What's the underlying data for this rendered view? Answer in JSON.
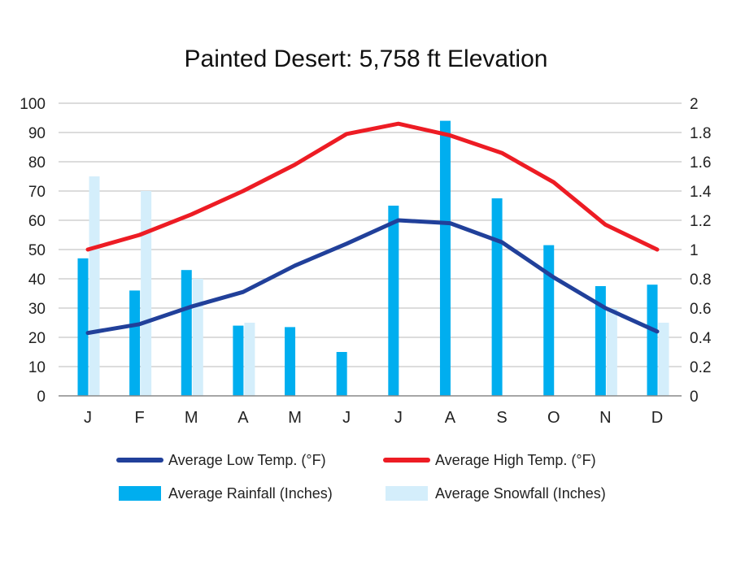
{
  "chart_data": {
    "type": "bar+line",
    "title": "Painted Desert: 5,758 ft Elevation",
    "categories": [
      "J",
      "F",
      "M",
      "A",
      "M",
      "J",
      "J",
      "A",
      "S",
      "O",
      "N",
      "D"
    ],
    "y_left": {
      "range": [
        0,
        100
      ],
      "ticks": [
        "0",
        "10",
        "20",
        "30",
        "40",
        "50",
        "60",
        "70",
        "80",
        "90",
        "100"
      ]
    },
    "y_right": {
      "range": [
        0,
        2
      ],
      "ticks": [
        "0",
        "0.2",
        "0.4",
        "0.6",
        "0.8",
        "1",
        "1.2",
        "1.4",
        "1.6",
        "1.8",
        "2"
      ]
    },
    "grid": true,
    "legend_position": "bottom",
    "bar_series": [
      {
        "name": "Average Rainfall (Inches)",
        "axis": "right",
        "color": "#00AEEF",
        "values": [
          0.94,
          0.72,
          0.86,
          0.48,
          0.47,
          0.3,
          1.3,
          1.88,
          1.35,
          1.03,
          0.75,
          0.76
        ]
      },
      {
        "name": "Average Snowfall (Inches)",
        "axis": "right",
        "color": "#D4EEFB",
        "values": [
          1.5,
          1.4,
          0.8,
          0.5,
          0,
          0,
          0,
          0,
          0,
          0,
          0.6,
          0.5
        ]
      }
    ],
    "line_series": [
      {
        "name": "Average Low Temp. (°F)",
        "axis": "left",
        "color": "#21409A",
        "values": [
          21.5,
          24.5,
          30.5,
          35.5,
          44.5,
          52,
          60,
          59,
          52.5,
          40.5,
          30,
          22
        ]
      },
      {
        "name": "Average High Temp. (°F)",
        "axis": "left",
        "color": "#ED1C24",
        "values": [
          50,
          55,
          62,
          70,
          79,
          89.5,
          93,
          89,
          83,
          73,
          58.5,
          50
        ]
      }
    ],
    "legend": [
      {
        "label": "Average Low Temp. (°F)",
        "kind": "line",
        "color": "#21409A"
      },
      {
        "label": "Average High Temp. (°F)",
        "kind": "line",
        "color": "#ED1C24"
      },
      {
        "label": "Average Rainfall (Inches)",
        "kind": "bar",
        "color": "#00AEEF"
      },
      {
        "label": "Average Snowfall (Inches)",
        "kind": "bar",
        "color": "#D4EEFB"
      }
    ]
  }
}
